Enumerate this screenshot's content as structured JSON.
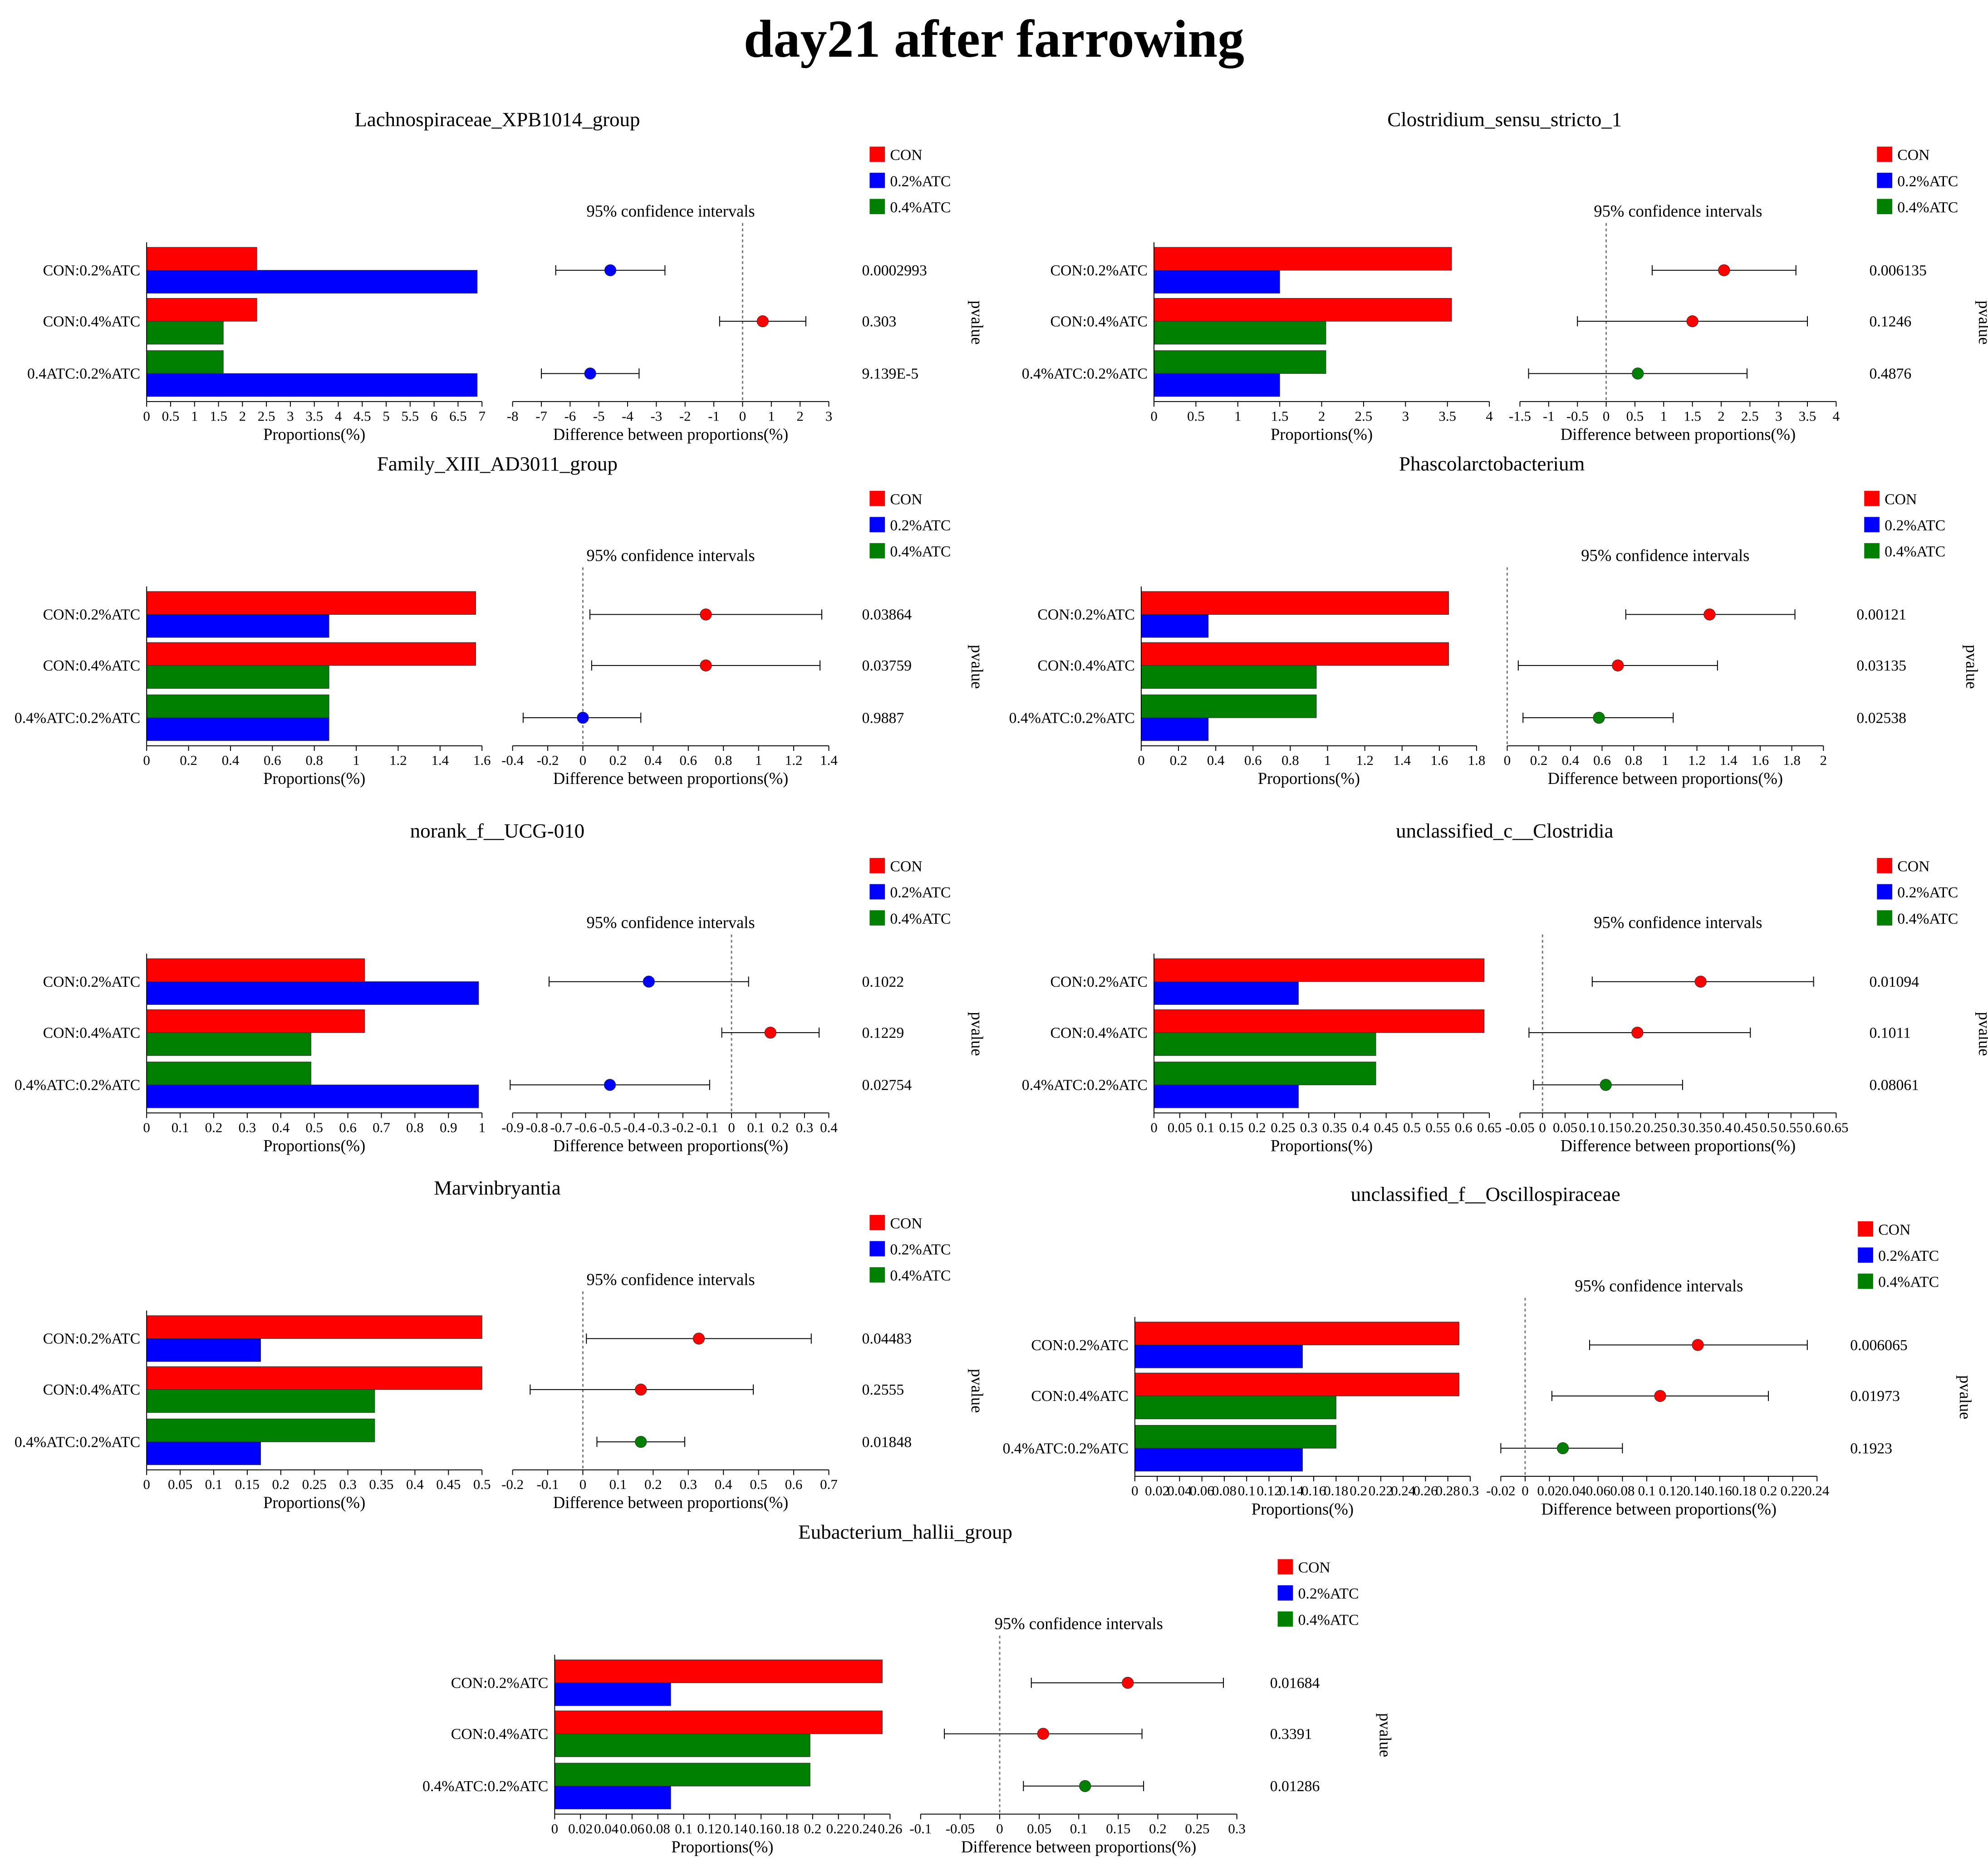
{
  "page_title": "day21 after farrowing",
  "colors": {
    "CON": "#ff0000",
    "0.2%ATC": "#0000ff",
    "0.4%ATC": "#008000"
  },
  "chart_data": [
    {
      "type": "bar",
      "title": "Lachnospiraceae_XPB1014_group",
      "xlabel": "Proportions(%)",
      "ci_title": "95% confidence intervals",
      "ci_xlabel": "Difference between proportions(%)",
      "pvalue_label": "pvalue",
      "legend": [
        "CON",
        "0.2%ATC",
        "0.4%ATC"
      ],
      "bar_xlim": [
        0,
        7
      ],
      "bar_ticks": [
        "0",
        "0.5",
        "1",
        "1.5",
        "2",
        "2.5",
        "3",
        "3.5",
        "4",
        "4.5",
        "5",
        "5.5",
        "6",
        "6.5",
        "7"
      ],
      "ci_xlim": [
        -8,
        3
      ],
      "ci_ticks": [
        "-8",
        "-7",
        "-6",
        "-5",
        "-4",
        "-3",
        "-2",
        "-1",
        "0",
        "1",
        "2",
        "3"
      ],
      "comparisons": [
        {
          "label": "CON:0.2%ATC",
          "bars": [
            {
              "group": "CON",
              "value": 2.3
            },
            {
              "group": "0.2%ATC",
              "value": 6.9
            }
          ],
          "diff": -4.6,
          "ci": [
            -6.5,
            -2.7
          ],
          "color_group": "0.2%ATC",
          "pvalue": "0.0002993"
        },
        {
          "label": "CON:0.4%ATC",
          "bars": [
            {
              "group": "CON",
              "value": 2.3
            },
            {
              "group": "0.4%ATC",
              "value": 1.6
            }
          ],
          "diff": 0.7,
          "ci": [
            -0.8,
            2.2
          ],
          "color_group": "CON",
          "pvalue": "0.303"
        },
        {
          "label": "0.4ATC:0.2%ATC",
          "bars": [
            {
              "group": "0.4%ATC",
              "value": 1.6
            },
            {
              "group": "0.2%ATC",
              "value": 6.9
            }
          ],
          "diff": -5.3,
          "ci": [
            -7.0,
            -3.6
          ],
          "color_group": "0.2%ATC",
          "pvalue": "9.139E-5"
        }
      ]
    },
    {
      "type": "bar",
      "title": "Clostridium_sensu_stricto_1",
      "xlabel": "Proportions(%)",
      "ci_title": "95% confidence intervals",
      "ci_xlabel": "Difference between proportions(%)",
      "pvalue_label": "pvalue",
      "legend": [
        "CON",
        "0.2%ATC",
        "0.4%ATC"
      ],
      "bar_xlim": [
        0,
        4
      ],
      "bar_ticks": [
        "0",
        "0.5",
        "1",
        "1.5",
        "2",
        "2.5",
        "3",
        "3.5",
        "4"
      ],
      "ci_xlim": [
        -1.5,
        4
      ],
      "ci_ticks": [
        "-1.5",
        "-1",
        "-0.5",
        "0",
        "0.5",
        "1",
        "1.5",
        "2",
        "2.5",
        "3",
        "3.5",
        "4"
      ],
      "comparisons": [
        {
          "label": "CON:0.2%ATC",
          "bars": [
            {
              "group": "CON",
              "value": 3.55
            },
            {
              "group": "0.2%ATC",
              "value": 1.5
            }
          ],
          "diff": 2.05,
          "ci": [
            0.8,
            3.3
          ],
          "color_group": "CON",
          "pvalue": "0.006135"
        },
        {
          "label": "CON:0.4%ATC",
          "bars": [
            {
              "group": "CON",
              "value": 3.55
            },
            {
              "group": "0.4%ATC",
              "value": 2.05
            }
          ],
          "diff": 1.5,
          "ci": [
            -0.5,
            3.5
          ],
          "color_group": "CON",
          "pvalue": "0.1246"
        },
        {
          "label": "0.4%ATC:0.2%ATC",
          "bars": [
            {
              "group": "0.4%ATC",
              "value": 2.05
            },
            {
              "group": "0.2%ATC",
              "value": 1.5
            }
          ],
          "diff": 0.55,
          "ci": [
            -1.35,
            2.45
          ],
          "color_group": "0.4%ATC",
          "pvalue": "0.4876"
        }
      ]
    },
    {
      "type": "bar",
      "title": "Family_XIII_AD3011_group",
      "xlabel": "Proportions(%)",
      "ci_title": "95% confidence intervals",
      "ci_xlabel": "Difference between proportions(%)",
      "pvalue_label": "pvalue",
      "legend": [
        "CON",
        "0.2%ATC",
        "0.4%ATC"
      ],
      "bar_xlim": [
        0,
        1.6
      ],
      "bar_ticks": [
        "0",
        "0.2",
        "0.4",
        "0.6",
        "0.8",
        "1",
        "1.2",
        "1.4",
        "1.6"
      ],
      "ci_xlim": [
        -0.4,
        1.4
      ],
      "ci_ticks": [
        "-0.4",
        "-0.2",
        "0",
        "0.2",
        "0.4",
        "0.6",
        "0.8",
        "1",
        "1.2",
        "1.4"
      ],
      "comparisons": [
        {
          "label": "CON:0.2%ATC",
          "bars": [
            {
              "group": "CON",
              "value": 1.57
            },
            {
              "group": "0.2%ATC",
              "value": 0.87
            }
          ],
          "diff": 0.7,
          "ci": [
            0.04,
            1.36
          ],
          "color_group": "CON",
          "pvalue": "0.03864"
        },
        {
          "label": "CON:0.4%ATC",
          "bars": [
            {
              "group": "CON",
              "value": 1.57
            },
            {
              "group": "0.4%ATC",
              "value": 0.87
            }
          ],
          "diff": 0.7,
          "ci": [
            0.05,
            1.35
          ],
          "color_group": "CON",
          "pvalue": "0.03759"
        },
        {
          "label": "0.4%ATC:0.2%ATC",
          "bars": [
            {
              "group": "0.4%ATC",
              "value": 0.87
            },
            {
              "group": "0.2%ATC",
              "value": 0.87
            }
          ],
          "diff": 0.0,
          "ci": [
            -0.34,
            0.33
          ],
          "color_group": "0.2%ATC",
          "pvalue": "0.9887"
        }
      ]
    },
    {
      "type": "bar",
      "title": "Phascolarctobacterium",
      "xlabel": "Proportions(%)",
      "ci_title": "95% confidence intervals",
      "ci_xlabel": "Difference between proportions(%)",
      "pvalue_label": "pvalue",
      "legend": [
        "CON",
        "0.2%ATC",
        "0.4%ATC"
      ],
      "bar_xlim": [
        0,
        1.8
      ],
      "bar_ticks": [
        "0",
        "0.2",
        "0.4",
        "0.6",
        "0.8",
        "1",
        "1.2",
        "1.4",
        "1.6",
        "1.8"
      ],
      "ci_xlim": [
        0,
        2
      ],
      "ci_ticks": [
        "0",
        "0.2",
        "0.4",
        "0.6",
        "0.8",
        "1",
        "1.2",
        "1.4",
        "1.6",
        "1.8",
        "2"
      ],
      "comparisons": [
        {
          "label": "CON:0.2%ATC",
          "bars": [
            {
              "group": "CON",
              "value": 1.65
            },
            {
              "group": "0.2%ATC",
              "value": 0.36
            }
          ],
          "diff": 1.28,
          "ci": [
            0.75,
            1.82
          ],
          "color_group": "CON",
          "pvalue": "0.00121"
        },
        {
          "label": "CON:0.4%ATC",
          "bars": [
            {
              "group": "CON",
              "value": 1.65
            },
            {
              "group": "0.4%ATC",
              "value": 0.94
            }
          ],
          "diff": 0.7,
          "ci": [
            0.07,
            1.33
          ],
          "color_group": "CON",
          "pvalue": "0.03135"
        },
        {
          "label": "0.4%ATC:0.2%ATC",
          "bars": [
            {
              "group": "0.4%ATC",
              "value": 0.94
            },
            {
              "group": "0.2%ATC",
              "value": 0.36
            }
          ],
          "diff": 0.58,
          "ci": [
            0.1,
            1.05
          ],
          "color_group": "0.4%ATC",
          "pvalue": "0.02538"
        }
      ]
    },
    {
      "type": "bar",
      "title": "norank_f__UCG-010",
      "xlabel": "Proportions(%)",
      "ci_title": "95% confidence intervals",
      "ci_xlabel": "Difference between proportions(%)",
      "pvalue_label": "pvalue",
      "legend": [
        "CON",
        "0.2%ATC",
        "0.4%ATC"
      ],
      "bar_xlim": [
        0,
        1
      ],
      "bar_ticks": [
        "0",
        "0.1",
        "0.2",
        "0.3",
        "0.4",
        "0.5",
        "0.6",
        "0.7",
        "0.8",
        "0.9",
        "1"
      ],
      "ci_xlim": [
        -0.9,
        0.4
      ],
      "ci_ticks": [
        "-0.9",
        "-0.8",
        "-0.7",
        "-0.6",
        "-0.5",
        "-0.4",
        "-0.3",
        "-0.2",
        "-0.1",
        "0",
        "0.1",
        "0.2",
        "0.3",
        "0.4"
      ],
      "comparisons": [
        {
          "label": "CON:0.2%ATC",
          "bars": [
            {
              "group": "CON",
              "value": 0.65
            },
            {
              "group": "0.2%ATC",
              "value": 0.99
            }
          ],
          "diff": -0.34,
          "ci": [
            -0.75,
            0.07
          ],
          "color_group": "0.2%ATC",
          "pvalue": "0.1022"
        },
        {
          "label": "CON:0.4%ATC",
          "bars": [
            {
              "group": "CON",
              "value": 0.65
            },
            {
              "group": "0.4%ATC",
              "value": 0.49
            }
          ],
          "diff": 0.16,
          "ci": [
            -0.04,
            0.36
          ],
          "color_group": "CON",
          "pvalue": "0.1229"
        },
        {
          "label": "0.4%ATC:0.2%ATC",
          "bars": [
            {
              "group": "0.4%ATC",
              "value": 0.49
            },
            {
              "group": "0.2%ATC",
              "value": 0.99
            }
          ],
          "diff": -0.5,
          "ci": [
            -0.91,
            -0.09
          ],
          "color_group": "0.2%ATC",
          "pvalue": "0.02754"
        }
      ]
    },
    {
      "type": "bar",
      "title": "unclassified_c__Clostridia",
      "xlabel": "Proportions(%)",
      "ci_title": "95% confidence intervals",
      "ci_xlabel": "Difference between proportions(%)",
      "pvalue_label": "pvalue",
      "legend": [
        "CON",
        "0.2%ATC",
        "0.4%ATC"
      ],
      "bar_xlim": [
        0,
        0.65
      ],
      "bar_ticks": [
        "0",
        "0.05",
        "0.1",
        "0.15",
        "0.2",
        "0.25",
        "0.3",
        "0.35",
        "0.4",
        "0.45",
        "0.5",
        "0.55",
        "0.6",
        "0.65"
      ],
      "ci_xlim": [
        -0.05,
        0.65
      ],
      "ci_ticks": [
        "-0.05",
        "0",
        "0.05",
        "0.1",
        "0.15",
        "0.2",
        "0.25",
        "0.3",
        "0.35",
        "0.4",
        "0.45",
        "0.5",
        "0.55",
        "0.6",
        "0.65"
      ],
      "comparisons": [
        {
          "label": "CON:0.2%ATC",
          "bars": [
            {
              "group": "CON",
              "value": 0.64
            },
            {
              "group": "0.2%ATC",
              "value": 0.28
            }
          ],
          "diff": 0.35,
          "ci": [
            0.11,
            0.6
          ],
          "color_group": "CON",
          "pvalue": "0.01094"
        },
        {
          "label": "CON:0.4%ATC",
          "bars": [
            {
              "group": "CON",
              "value": 0.64
            },
            {
              "group": "0.4%ATC",
              "value": 0.43
            }
          ],
          "diff": 0.21,
          "ci": [
            -0.03,
            0.46
          ],
          "color_group": "CON",
          "pvalue": "0.1011"
        },
        {
          "label": "0.4%ATC:0.2%ATC",
          "bars": [
            {
              "group": "0.4%ATC",
              "value": 0.43
            },
            {
              "group": "0.2%ATC",
              "value": 0.28
            }
          ],
          "diff": 0.14,
          "ci": [
            -0.02,
            0.31
          ],
          "color_group": "0.4%ATC",
          "pvalue": "0.08061"
        }
      ]
    },
    {
      "type": "bar",
      "title": "Marvinbryantia",
      "xlabel": "Proportions(%)",
      "ci_title": "95% confidence intervals",
      "ci_xlabel": "Difference between proportions(%)",
      "pvalue_label": "pvalue",
      "legend": [
        "CON",
        "0.2%ATC",
        "0.4%ATC"
      ],
      "bar_xlim": [
        0,
        0.5
      ],
      "bar_ticks": [
        "0",
        "0.05",
        "0.1",
        "0.15",
        "0.2",
        "0.25",
        "0.3",
        "0.35",
        "0.4",
        "0.45",
        "0.5"
      ],
      "ci_xlim": [
        -0.2,
        0.7
      ],
      "ci_ticks": [
        "-0.2",
        "-0.1",
        "0",
        "0.1",
        "0.2",
        "0.3",
        "0.4",
        "0.5",
        "0.6",
        "0.7"
      ],
      "comparisons": [
        {
          "label": "CON:0.2%ATC",
          "bars": [
            {
              "group": "CON",
              "value": 0.5
            },
            {
              "group": "0.2%ATC",
              "value": 0.17
            }
          ],
          "diff": 0.33,
          "ci": [
            0.01,
            0.65
          ],
          "color_group": "CON",
          "pvalue": "0.04483"
        },
        {
          "label": "CON:0.4%ATC",
          "bars": [
            {
              "group": "CON",
              "value": 0.5
            },
            {
              "group": "0.4%ATC",
              "value": 0.34
            }
          ],
          "diff": 0.165,
          "ci": [
            -0.15,
            0.485
          ],
          "color_group": "CON",
          "pvalue": "0.2555"
        },
        {
          "label": "0.4%ATC:0.2%ATC",
          "bars": [
            {
              "group": "0.4%ATC",
              "value": 0.34
            },
            {
              "group": "0.2%ATC",
              "value": 0.17
            }
          ],
          "diff": 0.165,
          "ci": [
            0.04,
            0.29
          ],
          "color_group": "0.4%ATC",
          "pvalue": "0.01848"
        }
      ]
    },
    {
      "type": "bar",
      "title": "unclassified_f__Oscillospiraceae",
      "xlabel": "Proportions(%)",
      "ci_title": "95% confidence intervals",
      "ci_xlabel": "Difference between proportions(%)",
      "pvalue_label": "pvalue",
      "legend": [
        "CON",
        "0.2%ATC",
        "0.4%ATC"
      ],
      "bar_xlim": [
        0,
        0.3
      ],
      "bar_ticks": [
        "0",
        "0.02",
        "0.04",
        "0.06",
        "0.08",
        "0.1",
        "0.12",
        "0.14",
        "0.16",
        "0.18",
        "0.2",
        "0.22",
        "0.24",
        "0.26",
        "0.28",
        "0.3"
      ],
      "ci_xlim": [
        -0.02,
        0.24
      ],
      "ci_ticks": [
        "-0.02",
        "0",
        "0.02",
        "0.04",
        "0.06",
        "0.08",
        "0.1",
        "0.12",
        "0.14",
        "0.16",
        "0.18",
        "0.2",
        "0.22",
        "0.24"
      ],
      "comparisons": [
        {
          "label": "CON:0.2%ATC",
          "bars": [
            {
              "group": "CON",
              "value": 0.29
            },
            {
              "group": "0.2%ATC",
              "value": 0.15
            }
          ],
          "diff": 0.142,
          "ci": [
            0.053,
            0.232
          ],
          "color_group": "CON",
          "pvalue": "0.006065"
        },
        {
          "label": "CON:0.4%ATC",
          "bars": [
            {
              "group": "CON",
              "value": 0.29
            },
            {
              "group": "0.4%ATC",
              "value": 0.18
            }
          ],
          "diff": 0.111,
          "ci": [
            0.022,
            0.2
          ],
          "color_group": "CON",
          "pvalue": "0.01973"
        },
        {
          "label": "0.4%ATC:0.2%ATC",
          "bars": [
            {
              "group": "0.4%ATC",
              "value": 0.18
            },
            {
              "group": "0.2%ATC",
              "value": 0.15
            }
          ],
          "diff": 0.031,
          "ci": [
            -0.02,
            0.08
          ],
          "color_group": "0.4%ATC",
          "pvalue": "0.1923"
        }
      ]
    },
    {
      "type": "bar",
      "title": "Eubacterium_hallii_group",
      "xlabel": "Proportions(%)",
      "ci_title": "95% confidence intervals",
      "ci_xlabel": "Difference between proportions(%)",
      "pvalue_label": "pvalue",
      "legend": [
        "CON",
        "0.2%ATC",
        "0.4%ATC"
      ],
      "bar_xlim": [
        0,
        0.26
      ],
      "bar_ticks": [
        "0",
        "0.02",
        "0.04",
        "0.06",
        "0.08",
        "0.1",
        "0.12",
        "0.14",
        "0.16",
        "0.18",
        "0.2",
        "0.22",
        "0.24",
        "0.26"
      ],
      "ci_xlim": [
        -0.1,
        0.3
      ],
      "ci_ticks": [
        "-0.1",
        "-0.05",
        "0",
        "0.05",
        "0.1",
        "0.15",
        "0.2",
        "0.25",
        "0.3"
      ],
      "comparisons": [
        {
          "label": "CON:0.2%ATC",
          "bars": [
            {
              "group": "CON",
              "value": 0.254
            },
            {
              "group": "0.2%ATC",
              "value": 0.09
            }
          ],
          "diff": 0.162,
          "ci": [
            0.04,
            0.283
          ],
          "color_group": "CON",
          "pvalue": "0.01684"
        },
        {
          "label": "CON:0.4%ATC",
          "bars": [
            {
              "group": "CON",
              "value": 0.254
            },
            {
              "group": "0.4%ATC",
              "value": 0.198
            }
          ],
          "diff": 0.055,
          "ci": [
            -0.07,
            0.18
          ],
          "color_group": "CON",
          "pvalue": "0.3391"
        },
        {
          "label": "0.4%ATC:0.2%ATC",
          "bars": [
            {
              "group": "0.4%ATC",
              "value": 0.198
            },
            {
              "group": "0.2%ATC",
              "value": 0.09
            }
          ],
          "diff": 0.108,
          "ci": [
            0.03,
            0.182
          ],
          "color_group": "0.4%ATC",
          "pvalue": "0.01286"
        }
      ]
    }
  ]
}
